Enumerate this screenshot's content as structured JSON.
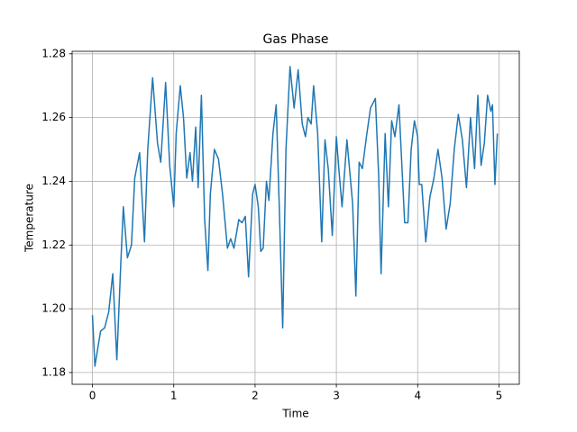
{
  "chart_data": {
    "type": "line",
    "title": "Gas Phase",
    "x_label": "Time",
    "y_label": "Temperature",
    "x": [
      0,
      0.03,
      0.1,
      0.15,
      0.2,
      0.25,
      0.3,
      0.35,
      0.38,
      0.43,
      0.48,
      0.52,
      0.58,
      0.64,
      0.68,
      0.74,
      0.8,
      0.84,
      0.9,
      0.95,
      1.0,
      1.03,
      1.08,
      1.12,
      1.16,
      1.2,
      1.23,
      1.27,
      1.3,
      1.34,
      1.38,
      1.42,
      1.45,
      1.5,
      1.55,
      1.6,
      1.66,
      1.7,
      1.74,
      1.8,
      1.84,
      1.88,
      1.92,
      1.97,
      2.0,
      2.04,
      2.07,
      2.1,
      2.14,
      2.17,
      2.22,
      2.26,
      2.3,
      2.34,
      2.38,
      2.43,
      2.48,
      2.53,
      2.58,
      2.62,
      2.65,
      2.69,
      2.72,
      2.77,
      2.82,
      2.86,
      2.9,
      2.95,
      3.0,
      3.03,
      3.07,
      3.13,
      3.2,
      3.24,
      3.28,
      3.32,
      3.37,
      3.42,
      3.48,
      3.52,
      3.55,
      3.6,
      3.64,
      3.68,
      3.72,
      3.77,
      3.8,
      3.84,
      3.88,
      3.92,
      3.96,
      4.0,
      4.02,
      4.05,
      4.1,
      4.15,
      4.2,
      4.25,
      4.3,
      4.35,
      4.4,
      4.45,
      4.5,
      4.55,
      4.6,
      4.65,
      4.7,
      4.74,
      4.78,
      4.82,
      4.86,
      4.9,
      4.92,
      4.95,
      4.98
    ],
    "series": [
      {
        "name": "Temperature",
        "color": "#1f77b4",
        "values": [
          1.198,
          1.182,
          1.193,
          1.194,
          1.199,
          1.211,
          1.184,
          1.215,
          1.232,
          1.216,
          1.22,
          1.241,
          1.249,
          1.221,
          1.25,
          1.2725,
          1.252,
          1.246,
          1.271,
          1.245,
          1.232,
          1.255,
          1.27,
          1.26,
          1.241,
          1.249,
          1.24,
          1.257,
          1.238,
          1.267,
          1.228,
          1.212,
          1.236,
          1.25,
          1.247,
          1.236,
          1.219,
          1.222,
          1.219,
          1.228,
          1.227,
          1.229,
          1.21,
          1.236,
          1.239,
          1.232,
          1.218,
          1.219,
          1.24,
          1.234,
          1.255,
          1.264,
          1.23,
          1.194,
          1.25,
          1.276,
          1.263,
          1.275,
          1.258,
          1.254,
          1.26,
          1.258,
          1.27,
          1.255,
          1.221,
          1.253,
          1.244,
          1.223,
          1.254,
          1.244,
          1.232,
          1.253,
          1.233,
          1.204,
          1.246,
          1.244,
          1.254,
          1.263,
          1.266,
          1.242,
          1.211,
          1.255,
          1.232,
          1.259,
          1.254,
          1.264,
          1.248,
          1.227,
          1.227,
          1.25,
          1.259,
          1.254,
          1.239,
          1.239,
          1.221,
          1.235,
          1.241,
          1.25,
          1.241,
          1.225,
          1.233,
          1.25,
          1.261,
          1.253,
          1.238,
          1.26,
          1.244,
          1.267,
          1.245,
          1.252,
          1.267,
          1.262,
          1.264,
          1.239,
          1.255
        ]
      }
    ],
    "xlim": [
      -0.25,
      5.25
    ],
    "ylim": [
      1.1763,
      1.2808
    ],
    "xticks": [
      0,
      1,
      2,
      3,
      4,
      5
    ],
    "yticks": [
      1.18,
      {
        "value": 1.2,
        "label": "1.20"
      },
      1.22,
      1.24,
      1.26,
      1.28
    ],
    "grid": true
  }
}
